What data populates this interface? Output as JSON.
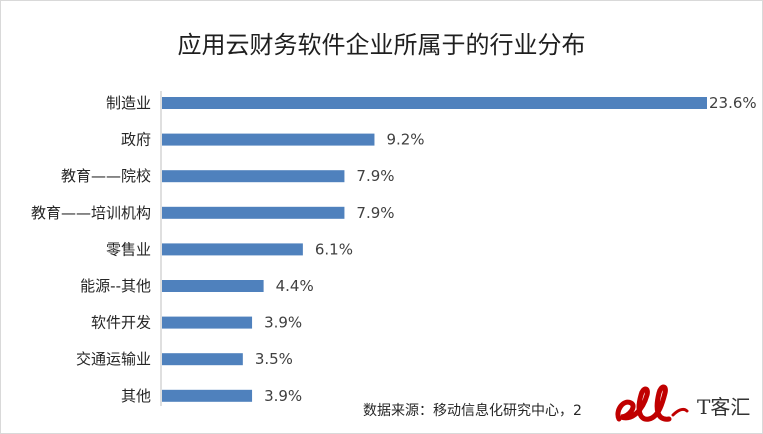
{
  "chart_data": {
    "type": "bar",
    "orientation": "horizontal",
    "title": "应用云财务软件企业所属于的行业分布",
    "categories": [
      "制造业",
      "政府",
      "教育——院校",
      "教育——培训机构",
      "零售业",
      "能源--其他",
      "软件开发",
      "交通运输业",
      "其他"
    ],
    "values": [
      23.6,
      9.2,
      7.9,
      7.9,
      6.1,
      4.4,
      3.9,
      3.5,
      3.9
    ],
    "value_labels": [
      "23.6%",
      "9.2%",
      "7.9%",
      "7.9%",
      "6.1%",
      "4.4%",
      "3.9%",
      "3.5%",
      "3.9%"
    ],
    "unit": "%",
    "xlim": [
      0,
      23.6
    ],
    "grid": false,
    "legend": "none",
    "bar_color": "#4f81bd"
  },
  "source_text": "数据来源：移动信息化研究中心，2",
  "watermark": {
    "logo": "ell-logo",
    "text": "T客汇",
    "color": "#c00000"
  }
}
